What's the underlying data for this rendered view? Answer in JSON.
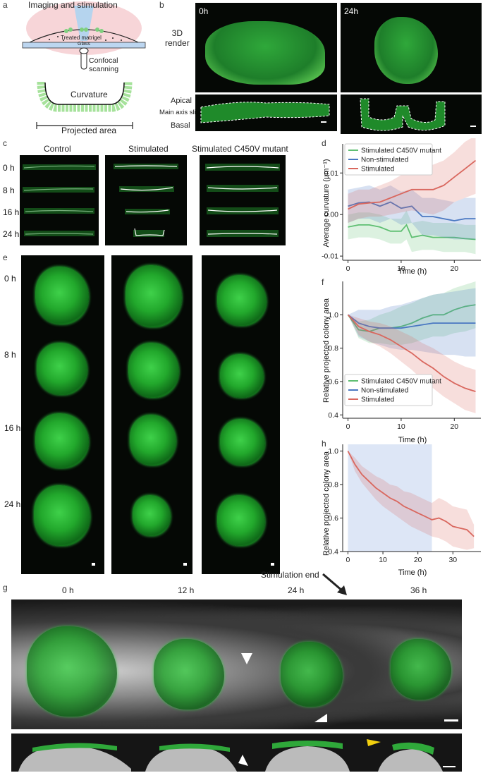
{
  "panel_letters": {
    "a": "a",
    "b": "b",
    "c": "c",
    "d": "d",
    "e": "e",
    "f": "f",
    "g": "g",
    "h": "h"
  },
  "panel_a": {
    "title": "Imaging and stimulation",
    "treated_matrigel": "Treated matrigel",
    "glass": "Glass",
    "confocal": "Confocal\nscanning",
    "curvature": "Curvature",
    "projected_area": "Projected area"
  },
  "panel_b": {
    "t0": "0h",
    "t24": "24h",
    "render_label": "3D\nrender",
    "apical": "Apical",
    "slice": "Main axis slice",
    "basal": "Basal"
  },
  "panel_c": {
    "columns": [
      "Control",
      "Stimulated",
      "Stimulated C450V mutant"
    ],
    "rows": [
      "0 h",
      "8 h",
      "16 h",
      "24 h"
    ]
  },
  "panel_e": {
    "rows": [
      "0 h",
      "8 h",
      "16 h",
      "24 h"
    ]
  },
  "panel_g": {
    "times": [
      "0 h",
      "12 h",
      "24 h",
      "36 h"
    ],
    "stim_end": "Stimulation end"
  },
  "colors": {
    "green": "#5fbf72",
    "blue": "#4a78c2",
    "red": "#d9675e",
    "shade": "#dde6f6"
  },
  "chart_data": [
    {
      "id": "d",
      "type": "line",
      "xlabel": "Time (h)",
      "ylabel": "Average curvature (µm⁻¹)",
      "xlim": [
        -1,
        25
      ],
      "ylim": [
        -0.011,
        0.017
      ],
      "xticks": [
        0,
        10,
        20
      ],
      "yticks": [
        -0.01,
        0.0,
        0.01
      ],
      "ytick_labels": [
        "-0.01",
        "0.00",
        "0.01"
      ],
      "legend": [
        "Stimulated C450V mutant",
        "Non-stimulated",
        "Stimulated"
      ],
      "series": [
        {
          "name": "Stimulated C450V mutant",
          "color": "#5fbf72",
          "x": [
            0,
            2,
            4,
            6,
            8,
            10,
            11,
            12,
            14,
            16,
            18,
            20,
            22,
            24
          ],
          "y": [
            -0.003,
            -0.0025,
            -0.0025,
            -0.003,
            -0.004,
            -0.004,
            -0.0025,
            -0.0055,
            -0.005,
            -0.0055,
            -0.0055,
            -0.0055,
            -0.0058,
            -0.006
          ],
          "lo": [
            -0.006,
            -0.0055,
            -0.0055,
            -0.006,
            -0.007,
            -0.007,
            -0.006,
            -0.009,
            -0.0085,
            -0.0085,
            -0.009,
            -0.009,
            -0.009,
            -0.0095
          ],
          "hi": [
            0.0,
            0.0005,
            0.0005,
            0.0,
            -0.001,
            -0.001,
            0.001,
            -0.002,
            -0.0015,
            -0.002,
            -0.002,
            -0.002,
            -0.0025,
            -0.0025
          ]
        },
        {
          "name": "Non-stimulated",
          "color": "#4a78c2",
          "x": [
            0,
            2,
            4,
            6,
            8,
            10,
            12,
            14,
            16,
            18,
            20,
            22,
            24
          ],
          "y": [
            0.002,
            0.0028,
            0.003,
            0.002,
            0.003,
            0.0015,
            0.002,
            -0.0005,
            -0.0005,
            -0.001,
            -0.0015,
            -0.001,
            -0.001
          ],
          "lo": [
            -0.002,
            -0.001,
            -0.001,
            -0.002,
            -0.001,
            -0.0025,
            -0.002,
            -0.005,
            -0.005,
            -0.0055,
            -0.006,
            -0.006,
            -0.006
          ],
          "hi": [
            0.006,
            0.0065,
            0.007,
            0.006,
            0.007,
            0.0055,
            0.006,
            0.004,
            0.004,
            0.0035,
            0.003,
            0.004,
            0.004
          ]
        },
        {
          "name": "Stimulated",
          "color": "#d9675e",
          "x": [
            0,
            2,
            4,
            6,
            8,
            10,
            12,
            14,
            16,
            18,
            20,
            22,
            24
          ],
          "y": [
            0.0013,
            0.0025,
            0.0028,
            0.003,
            0.004,
            0.005,
            0.006,
            0.006,
            0.006,
            0.007,
            0.009,
            0.011,
            0.013
          ],
          "lo": [
            -0.002,
            -0.001,
            -0.0005,
            -0.0005,
            0.0,
            0.0005,
            0.001,
            0.0005,
            0.0,
            0.001,
            0.003,
            0.004,
            0.005
          ],
          "hi": [
            0.005,
            0.006,
            0.006,
            0.007,
            0.008,
            0.0095,
            0.011,
            0.011,
            0.012,
            0.013,
            0.015,
            0.0175,
            0.019
          ]
        }
      ]
    },
    {
      "id": "f",
      "type": "line",
      "xlabel": "Time (h)",
      "ylabel": "Relative projected colony area",
      "xlim": [
        -1,
        25
      ],
      "ylim": [
        0.38,
        1.2
      ],
      "xticks": [
        0,
        10,
        20
      ],
      "yticks": [
        0.4,
        0.6,
        0.8,
        1.0
      ],
      "ytick_labels": [
        "0.4",
        "0.6",
        "0.8",
        "1.0"
      ],
      "legend": [
        "Stimulated C450V mutant",
        "Non-stimulated",
        "Stimulated"
      ],
      "series": [
        {
          "name": "Stimulated C450V mutant",
          "color": "#5fbf72",
          "x": [
            0,
            2,
            4,
            6,
            8,
            10,
            12,
            14,
            16,
            18,
            20,
            22,
            24
          ],
          "y": [
            1.0,
            0.91,
            0.9,
            0.92,
            0.92,
            0.93,
            0.95,
            0.98,
            1.0,
            1.0,
            1.03,
            1.05,
            1.06
          ],
          "lo": [
            1.0,
            0.86,
            0.83,
            0.83,
            0.82,
            0.82,
            0.83,
            0.85,
            0.87,
            0.87,
            0.89,
            0.9,
            0.92
          ],
          "hi": [
            1.0,
            0.96,
            0.97,
            1.0,
            1.02,
            1.05,
            1.07,
            1.1,
            1.12,
            1.13,
            1.16,
            1.18,
            1.2
          ]
        },
        {
          "name": "Non-stimulated",
          "color": "#4a78c2",
          "x": [
            0,
            2,
            4,
            6,
            8,
            10,
            12,
            14,
            16,
            18,
            20,
            22,
            24
          ],
          "y": [
            1.0,
            0.95,
            0.93,
            0.92,
            0.92,
            0.92,
            0.93,
            0.94,
            0.95,
            0.95,
            0.95,
            0.95,
            0.95
          ],
          "lo": [
            1.0,
            0.87,
            0.84,
            0.82,
            0.8,
            0.79,
            0.79,
            0.78,
            0.77,
            0.76,
            0.76,
            0.75,
            0.75
          ],
          "hi": [
            1.0,
            1.03,
            1.03,
            1.03,
            1.05,
            1.06,
            1.08,
            1.1,
            1.12,
            1.13,
            1.14,
            1.15,
            1.16
          ]
        },
        {
          "name": "Stimulated",
          "color": "#d9675e",
          "x": [
            0,
            2,
            4,
            6,
            8,
            10,
            12,
            14,
            16,
            18,
            20,
            22,
            24
          ],
          "y": [
            1.0,
            0.93,
            0.9,
            0.88,
            0.85,
            0.81,
            0.77,
            0.72,
            0.68,
            0.63,
            0.59,
            0.56,
            0.54
          ],
          "lo": [
            1.0,
            0.88,
            0.84,
            0.81,
            0.77,
            0.72,
            0.67,
            0.61,
            0.56,
            0.51,
            0.47,
            0.43,
            0.41
          ],
          "hi": [
            1.0,
            0.98,
            0.96,
            0.95,
            0.93,
            0.9,
            0.87,
            0.83,
            0.8,
            0.76,
            0.72,
            0.69,
            0.67
          ]
        }
      ]
    },
    {
      "id": "h",
      "type": "line",
      "xlabel": "Time (h)",
      "ylabel": "Relative projected colony area",
      "xlim": [
        -1.5,
        38
      ],
      "ylim": [
        0.4,
        1.04
      ],
      "xticks": [
        0,
        10,
        20,
        30
      ],
      "yticks": [
        0.4,
        0.6,
        0.8,
        1.0
      ],
      "ytick_labels": [
        "0.4",
        "0.6",
        "0.8",
        "1.0"
      ],
      "stim_region": [
        0,
        24
      ],
      "series": [
        {
          "name": "Stimulated",
          "color": "#d9675e",
          "x": [
            0,
            2,
            4,
            6,
            8,
            10,
            12,
            14,
            16,
            18,
            20,
            22,
            24,
            26,
            28,
            30,
            32,
            34,
            36
          ],
          "y": [
            1.0,
            0.92,
            0.86,
            0.82,
            0.78,
            0.75,
            0.72,
            0.7,
            0.67,
            0.65,
            0.63,
            0.61,
            0.59,
            0.6,
            0.58,
            0.55,
            0.54,
            0.53,
            0.49
          ],
          "lo": [
            1.0,
            0.88,
            0.81,
            0.76,
            0.71,
            0.67,
            0.64,
            0.61,
            0.58,
            0.55,
            0.53,
            0.51,
            0.49,
            0.48,
            0.46,
            0.43,
            0.42,
            0.41,
            0.42
          ],
          "hi": [
            1.0,
            0.96,
            0.91,
            0.88,
            0.85,
            0.83,
            0.8,
            0.79,
            0.76,
            0.75,
            0.73,
            0.71,
            0.69,
            0.72,
            0.7,
            0.67,
            0.66,
            0.65,
            0.56
          ]
        }
      ]
    }
  ]
}
